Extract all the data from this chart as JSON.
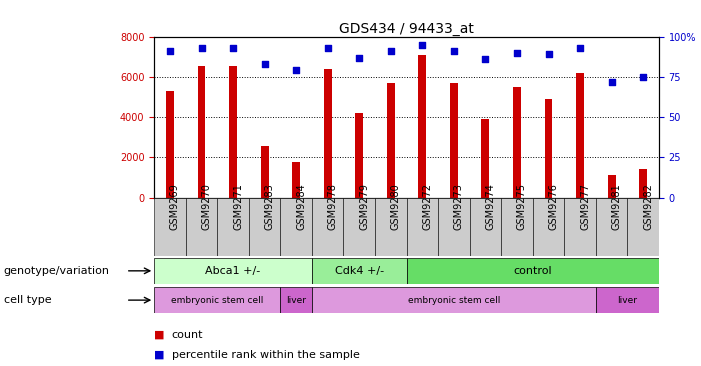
{
  "title": "GDS434 / 94433_at",
  "samples": [
    "GSM9269",
    "GSM9270",
    "GSM9271",
    "GSM9283",
    "GSM9284",
    "GSM9278",
    "GSM9279",
    "GSM9280",
    "GSM9272",
    "GSM9273",
    "GSM9274",
    "GSM9275",
    "GSM9276",
    "GSM9277",
    "GSM9281",
    "GSM9282"
  ],
  "counts": [
    5300,
    6550,
    6550,
    2550,
    1750,
    6400,
    4200,
    5700,
    7100,
    5700,
    3900,
    5500,
    4900,
    6200,
    1100,
    1400
  ],
  "percentiles": [
    91,
    93,
    93,
    83,
    79,
    93,
    87,
    91,
    95,
    91,
    86,
    90,
    89,
    93,
    72,
    75
  ],
  "bar_color": "#cc0000",
  "dot_color": "#0000cc",
  "ylim_left": [
    0,
    8000
  ],
  "ylim_right": [
    0,
    100
  ],
  "yticks_left": [
    0,
    2000,
    4000,
    6000,
    8000
  ],
  "yticks_right": [
    0,
    25,
    50,
    75,
    100
  ],
  "genotype_groups": [
    {
      "label": "Abca1 +/-",
      "start": 0,
      "end": 5,
      "color": "#ccffcc"
    },
    {
      "label": "Cdk4 +/-",
      "start": 5,
      "end": 8,
      "color": "#99ee99"
    },
    {
      "label": "control",
      "start": 8,
      "end": 16,
      "color": "#66dd66"
    }
  ],
  "celltype_groups": [
    {
      "label": "embryonic stem cell",
      "start": 0,
      "end": 4,
      "color": "#dd99dd"
    },
    {
      "label": "liver",
      "start": 4,
      "end": 5,
      "color": "#cc66cc"
    },
    {
      "label": "embryonic stem cell",
      "start": 5,
      "end": 14,
      "color": "#dd99dd"
    },
    {
      "label": "liver",
      "start": 14,
      "end": 16,
      "color": "#cc66cc"
    }
  ],
  "legend_count_label": "count",
  "legend_pct_label": "percentile rank within the sample",
  "genotype_row_label": "genotype/variation",
  "celltype_row_label": "cell type",
  "background_color": "#ffffff",
  "plot_bg_color": "#ffffff",
  "tick_label_color_left": "#cc0000",
  "tick_label_color_right": "#0000cc",
  "grid_color": "#000000",
  "title_fontsize": 10,
  "tick_fontsize": 7,
  "label_fontsize": 8,
  "annotation_fontsize": 8,
  "xtick_bg_color": "#cccccc"
}
